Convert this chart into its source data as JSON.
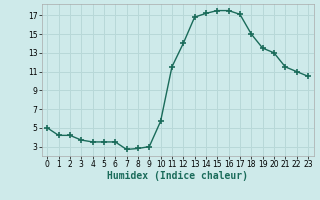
{
  "x": [
    0,
    1,
    2,
    3,
    4,
    5,
    6,
    7,
    8,
    9,
    10,
    11,
    12,
    13,
    14,
    15,
    16,
    17,
    18,
    19,
    20,
    21,
    22,
    23
  ],
  "y": [
    5.0,
    4.2,
    4.2,
    3.7,
    3.5,
    3.5,
    3.5,
    2.7,
    2.8,
    3.0,
    5.7,
    11.5,
    14.0,
    16.8,
    17.2,
    17.5,
    17.5,
    17.1,
    15.0,
    13.5,
    13.0,
    11.5,
    11.0,
    10.5
  ],
  "line_color": "#1a6b5a",
  "marker": "+",
  "marker_size": 4,
  "marker_lw": 1.2,
  "xlabel": "Humidex (Indice chaleur)",
  "xlim": [
    -0.5,
    23.5
  ],
  "ylim": [
    2,
    18.2
  ],
  "yticks": [
    3,
    5,
    7,
    9,
    11,
    13,
    15,
    17
  ],
  "xticks": [
    0,
    1,
    2,
    3,
    4,
    5,
    6,
    7,
    8,
    9,
    10,
    11,
    12,
    13,
    14,
    15,
    16,
    17,
    18,
    19,
    20,
    21,
    22,
    23
  ],
  "bg_color": "#ceeaea",
  "grid_color": "#b8d8d8",
  "tick_fontsize": 5.5,
  "xlabel_fontsize": 7,
  "line_width": 1.0
}
